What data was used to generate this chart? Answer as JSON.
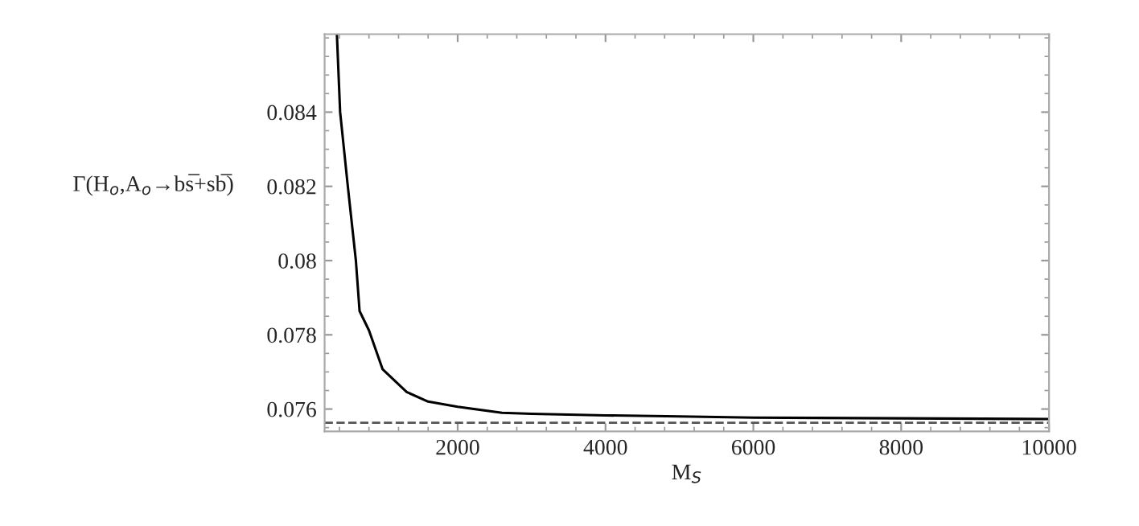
{
  "chart_data": {
    "type": "line",
    "xlabel": "M$_{S}$",
    "ylabel": "Γ(H$_{o}$,A$_{o}$→bs̅+sb̅)",
    "series": [
      {
        "color": "#000000",
        "x": [
          366,
          410,
          514,
          623,
          673,
          800,
          985,
          1310,
          1600,
          2000,
          2600,
          3000,
          4000,
          5000,
          6000,
          8000,
          10000
        ],
        "values": [
          0.0861,
          0.084,
          0.082,
          0.08,
          0.07864,
          0.07812,
          0.07707,
          0.07646,
          0.0762,
          0.07606,
          0.0759,
          0.07587,
          0.07583,
          0.0758,
          0.07577,
          0.07575,
          0.07573
        ]
      }
    ],
    "xlim": [
      200,
      10000
    ],
    "ylim": [
      0.0754,
      0.0861
    ],
    "xticks": [
      2000,
      4000,
      6000,
      8000,
      10000
    ],
    "yticks": [
      0.076,
      0.078,
      0.08,
      0.082,
      0.084
    ],
    "ref_lines": [
      {
        "axis": "y",
        "value": 0.07563,
        "color": "#555555",
        "line_style": "dashed"
      }
    ],
    "grid": false,
    "line_style": "solid",
    "marker": "none"
  }
}
